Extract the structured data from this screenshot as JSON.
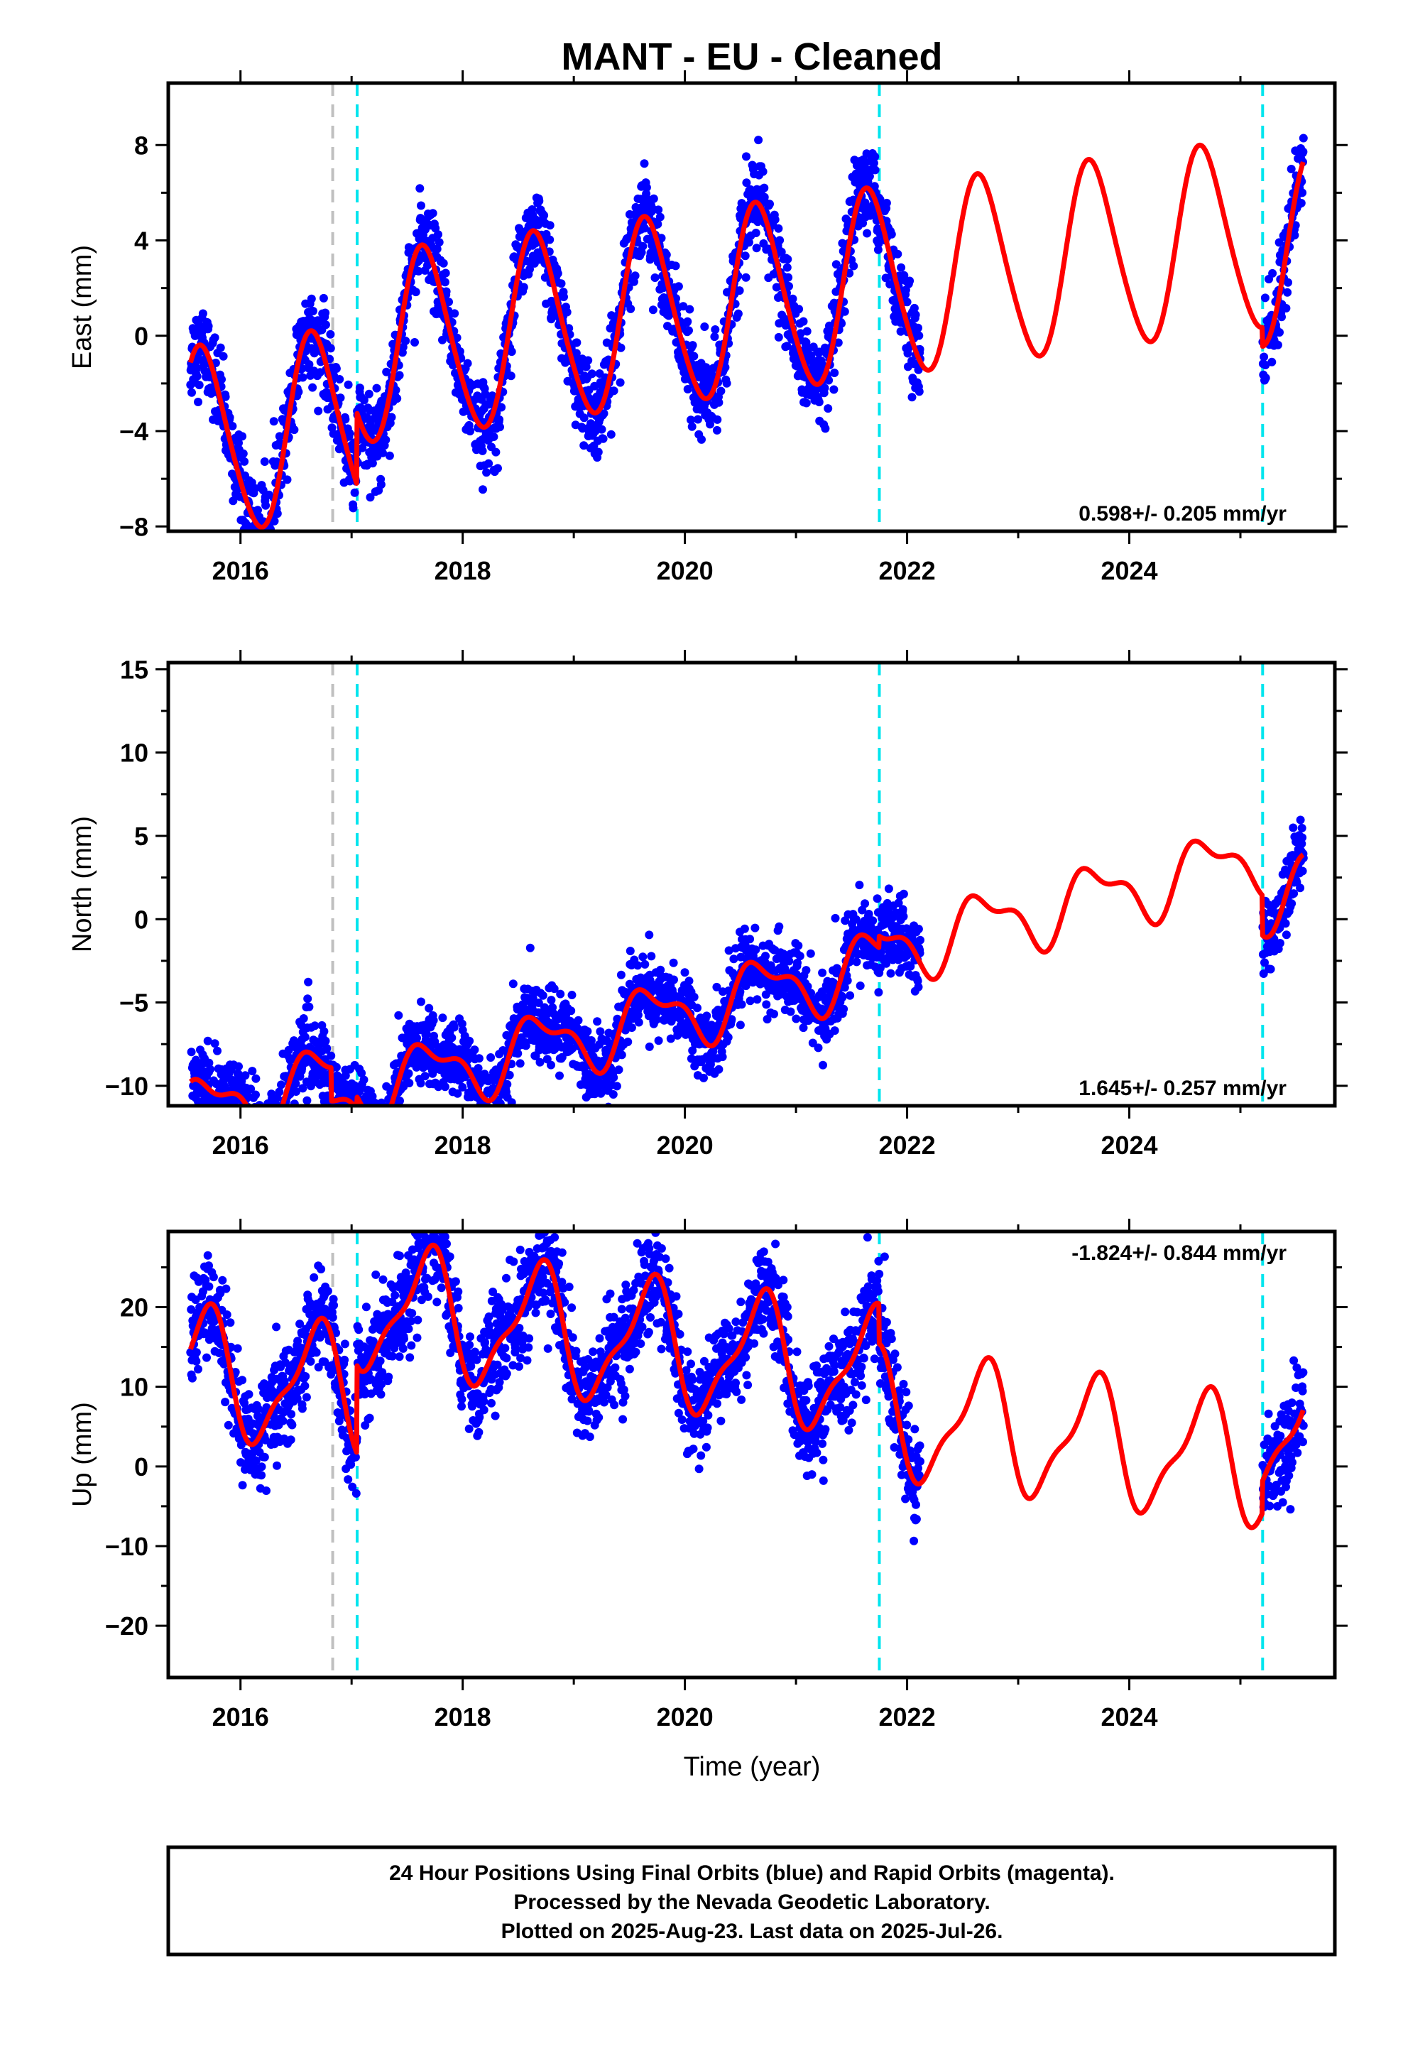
{
  "title": "MANT  - EU - Cleaned",
  "xlabel": "Time (year)",
  "colors": {
    "final_orbits": "#0000ff",
    "model": "#ff0000",
    "equipment_change": "#00e5ee",
    "earthquake": "#c0c0c0"
  },
  "footer": {
    "line1": "24 Hour Positions Using Final Orbits (blue) and Rapid Orbits (magenta).",
    "line2": "Processed by the Nevada Geodetic Laboratory.",
    "line3": "Plotted on 2025-Aug-23. Last data on 2025-Jul-26."
  },
  "chart_data": [
    {
      "type": "scatter",
      "component": "east",
      "ylabel": "East (mm)",
      "rate_label": "0.598+/- 0.205 mm/yr",
      "rate_position": "bottom-right",
      "xlim": [
        2015.35,
        2025.85
      ],
      "ylim": [
        -8.2,
        10.6
      ],
      "yticks": [
        -8,
        -4,
        0,
        4,
        8
      ],
      "yticks_minor": [
        -6,
        -2,
        2,
        6
      ],
      "xticks": [
        2016,
        2018,
        2020,
        2022,
        2024
      ],
      "data_range": [
        2015.55,
        2025.57
      ],
      "data_gap": [
        2022.12,
        2025.2
      ],
      "data_scatter_mm": 0.9,
      "model": {
        "rate": 0.598,
        "offset": -1.9,
        "annual_cos": -2.1,
        "annual_sin": -3.3,
        "semiannual_cos": 0.3,
        "semiannual_sin": 0.3,
        "steps": [
          {
            "time": 2017.05,
            "size": 3.0
          },
          {
            "time": 2025.2,
            "size": -0.8
          }
        ]
      },
      "grid": false
    },
    {
      "type": "scatter",
      "component": "north",
      "ylabel": "North (mm)",
      "rate_label": "1.645+/- 0.257 mm/yr",
      "rate_position": "bottom-right",
      "xlim": [
        2015.35,
        2025.85
      ],
      "ylim": [
        -11.2,
        15.4
      ],
      "yticks": [
        -10,
        -5,
        0,
        5,
        10,
        15
      ],
      "yticks_minor": [
        -7.5,
        -2.5,
        2.5,
        7.5,
        12.5
      ],
      "xticks": [
        2016,
        2018,
        2020,
        2022,
        2024
      ],
      "data_range": [
        2015.55,
        2025.57
      ],
      "data_gap": [
        2022.12,
        2025.2
      ],
      "data_scatter_mm": 1.1,
      "model": {
        "rate": 1.645,
        "offset": -4.3,
        "annual_cos": -0.6,
        "annual_sin": -1.7,
        "semiannual_cos": 0.8,
        "semiannual_sin": 0.2,
        "steps": [
          {
            "time": 2016.82,
            "size": -2.0
          },
          {
            "time": 2017.05,
            "size": 0.8
          },
          {
            "time": 2021.75,
            "size": 0.7
          },
          {
            "time": 2025.2,
            "size": -2.4
          }
        ]
      },
      "grid": false
    },
    {
      "type": "scatter",
      "component": "up",
      "ylabel": "Up (mm)",
      "rate_label": "-1.824+/- 0.844 mm/yr",
      "rate_position": "top-right",
      "xlim": [
        2015.35,
        2025.85
      ],
      "ylim": [
        -26.5,
        29.5
      ],
      "yticks": [
        -20,
        -10,
        0,
        10,
        20
      ],
      "yticks_minor": [
        -15,
        -5,
        5,
        15,
        25
      ],
      "xticks": [
        2016,
        2018,
        2020,
        2022,
        2024
      ],
      "data_range": [
        2015.55,
        2025.57
      ],
      "data_gap": [
        2022.12,
        2025.2
      ],
      "data_scatter_mm": 3.2,
      "model": {
        "rate": -1.824,
        "offset": 3.8,
        "annual_cos": -3.3,
        "annual_sin": -6.6,
        "semiannual_cos": -2.2,
        "semiannual_sin": -1.0,
        "steps": [
          {
            "time": 2017.05,
            "size": 11.0
          },
          {
            "time": 2021.75,
            "size": -5.0
          },
          {
            "time": 2025.2,
            "size": 4.0
          }
        ]
      },
      "grid": false
    }
  ],
  "vlines": [
    {
      "time": 2016.83,
      "kind": "earthquake"
    },
    {
      "time": 2017.05,
      "kind": "equipment_change"
    },
    {
      "time": 2021.75,
      "kind": "equipment_change"
    },
    {
      "time": 2025.2,
      "kind": "equipment_change"
    }
  ]
}
